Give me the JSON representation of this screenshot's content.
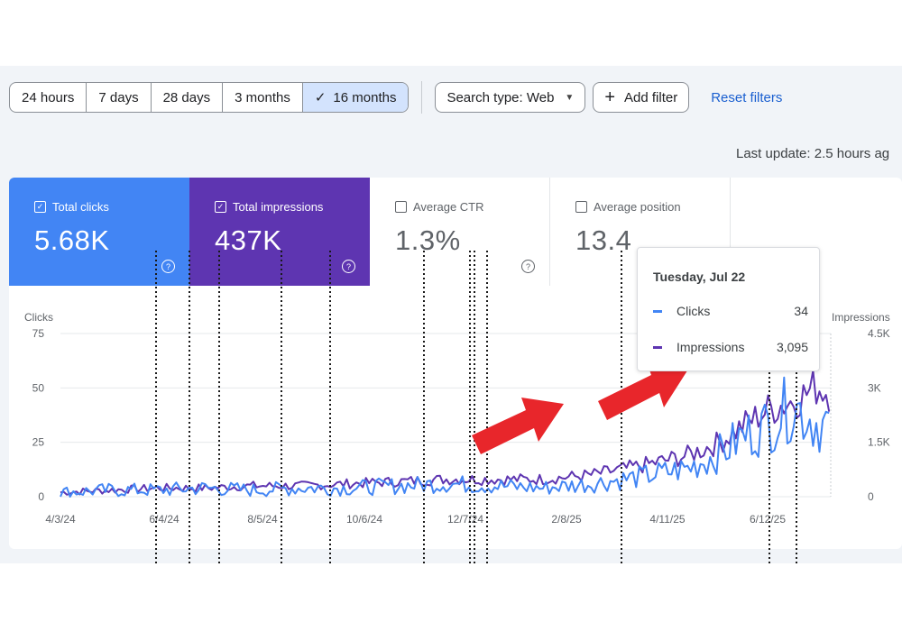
{
  "toolbar": {
    "ranges": [
      "24 hours",
      "7 days",
      "28 days",
      "3 months",
      "16 months"
    ],
    "active_range": "16 months",
    "search_type": "Search type: Web",
    "add_filter": "Add filter",
    "reset_filters": "Reset filters"
  },
  "last_update": "Last update: 2.5 hours ag",
  "metrics": {
    "clicks": {
      "label": "Total clicks",
      "value": "5.68K",
      "checked": true,
      "color": "#4285f4"
    },
    "impressions": {
      "label": "Total impressions",
      "value": "437K",
      "checked": true,
      "color": "#5e35b1"
    },
    "ctr": {
      "label": "Average CTR",
      "value": "1.3%",
      "checked": false
    },
    "position": {
      "label": "Average position",
      "value": "13.4",
      "checked": false
    }
  },
  "tooltip": {
    "date": "Tuesday, Jul 22",
    "rows": [
      {
        "name": "Clicks",
        "value": "34",
        "color": "#4285f4"
      },
      {
        "name": "Impressions",
        "value": "3,095",
        "color": "#5e35b1"
      }
    ]
  },
  "chart_data": {
    "type": "line",
    "left_axis": {
      "title": "Clicks",
      "ticks": [
        "75",
        "50",
        "25",
        "0"
      ],
      "range": [
        0,
        75
      ]
    },
    "right_axis": {
      "title": "Impressions",
      "ticks": [
        "4.5K",
        "3K",
        "1.5K",
        "0"
      ],
      "range": [
        0,
        4500
      ]
    },
    "x_ticks": [
      "4/3/24",
      "6/4/24",
      "8/5/24",
      "10/6/24",
      "12/7/24",
      "2/8/25",
      "4/11/25",
      "6/12/25"
    ],
    "x_range_days": [
      0,
      479
    ],
    "series": [
      {
        "name": "Clicks",
        "color": "#4285f4",
        "axis": "left",
        "points": [
          [
            0,
            2
          ],
          [
            30,
            3
          ],
          [
            60,
            3
          ],
          [
            90,
            4
          ],
          [
            120,
            3
          ],
          [
            150,
            4
          ],
          [
            180,
            4
          ],
          [
            210,
            5
          ],
          [
            240,
            6
          ],
          [
            270,
            5
          ],
          [
            300,
            4
          ],
          [
            330,
            6
          ],
          [
            360,
            9
          ],
          [
            390,
            13
          ],
          [
            410,
            20
          ],
          [
            425,
            28
          ],
          [
            440,
            33
          ],
          [
            455,
            42
          ],
          [
            463,
            38
          ],
          [
            470,
            34
          ],
          [
            479,
            33
          ]
        ]
      },
      {
        "name": "Impressions",
        "color": "#5e35b1",
        "axis": "left",
        "points": [
          [
            0,
            2
          ],
          [
            30,
            3
          ],
          [
            60,
            4
          ],
          [
            90,
            4
          ],
          [
            120,
            5
          ],
          [
            150,
            5
          ],
          [
            180,
            6
          ],
          [
            210,
            7
          ],
          [
            240,
            8
          ],
          [
            270,
            8
          ],
          [
            300,
            8
          ],
          [
            330,
            10
          ],
          [
            360,
            14
          ],
          [
            390,
            19
          ],
          [
            410,
            25
          ],
          [
            425,
            33
          ],
          [
            440,
            40
          ],
          [
            455,
            44
          ],
          [
            463,
            47
          ],
          [
            470,
            51
          ],
          [
            479,
            48
          ]
        ]
      }
    ]
  }
}
